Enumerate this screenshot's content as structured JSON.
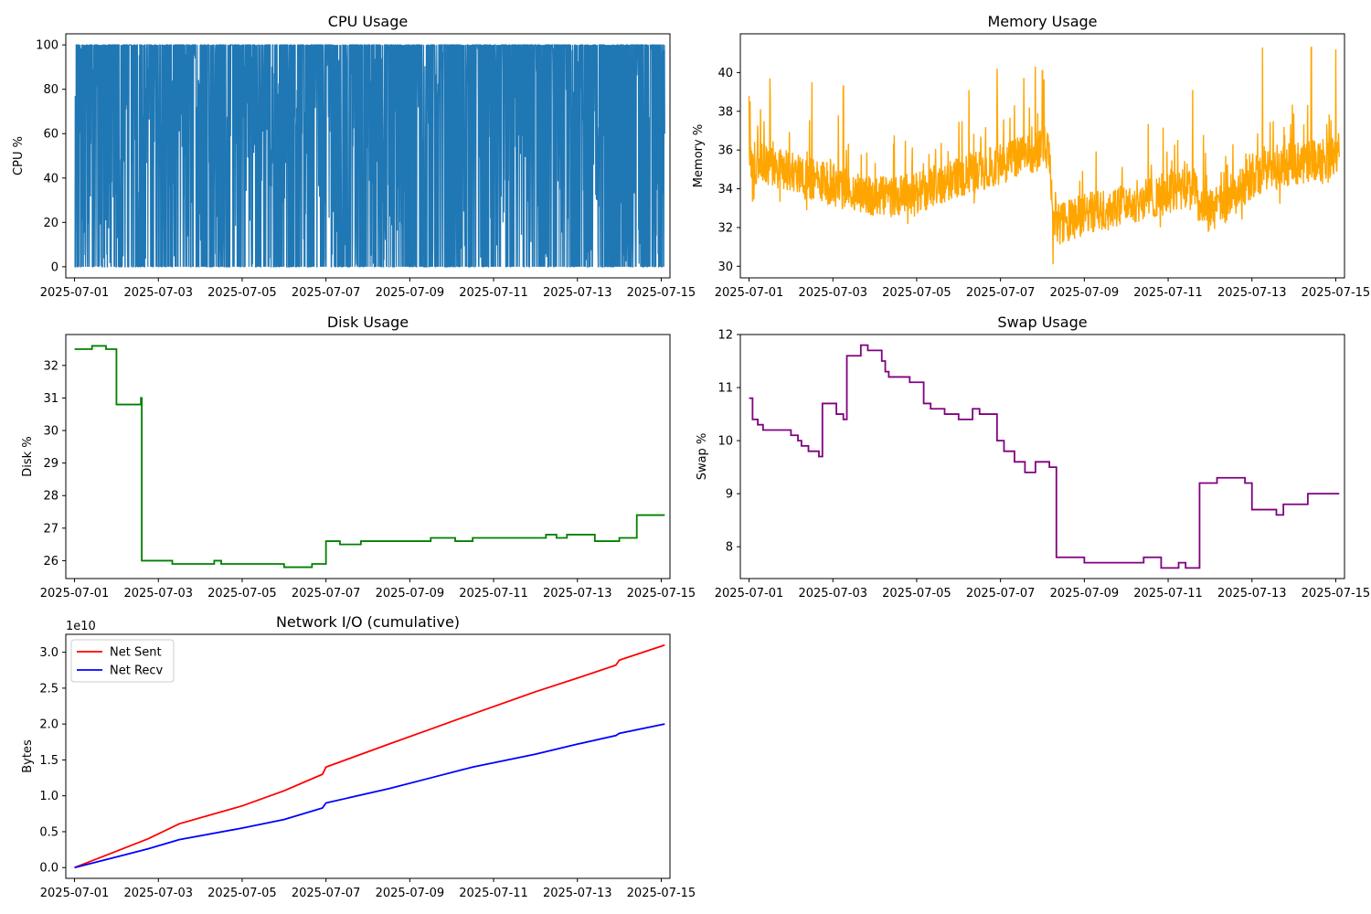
{
  "chart_data": [
    {
      "id": "cpu",
      "type": "line",
      "title": "CPU Usage",
      "xlabel": "",
      "ylabel": "CPU %",
      "xlim": [
        "2025-06-30T19:00",
        "2025-07-15T05:00"
      ],
      "ylim": [
        -5,
        105
      ],
      "xticks": [
        "2025-07-01",
        "2025-07-03",
        "2025-07-05",
        "2025-07-07",
        "2025-07-09",
        "2025-07-11",
        "2025-07-13",
        "2025-07-15"
      ],
      "yticks": [
        0,
        20,
        40,
        60,
        80,
        100
      ],
      "grid": false,
      "color": "#1f77b4",
      "series": [
        {
          "x_start": "2025-07-01T00:00",
          "x_end": "2025-07-15T02:00",
          "profile": "dense spikes between 0 and 100 (mostly 0, frequent peaks 40-100)",
          "y_min": 0,
          "y_max": 100,
          "samples": [
            [
              "2025-07-01T00:00",
              0
            ],
            [
              "2025-07-01T00:10",
              77
            ],
            [
              "2025-07-01T00:20",
              0
            ],
            [
              "2025-07-02T00:00",
              100
            ],
            [
              "2025-07-03T00:00",
              100
            ],
            [
              "2025-07-04T12:00",
              100
            ],
            [
              "2025-07-06T00:00",
              100
            ],
            [
              "2025-07-07T12:00",
              100
            ],
            [
              "2025-07-08T12:00",
              31
            ],
            [
              "2025-07-10T00:00",
              100
            ],
            [
              "2025-07-12T00:00",
              100
            ],
            [
              "2025-07-14T00:00",
              100
            ],
            [
              "2025-07-15T02:00",
              60
            ]
          ]
        }
      ]
    },
    {
      "id": "memory",
      "type": "line",
      "title": "Memory Usage",
      "xlabel": "",
      "ylabel": "Memory %",
      "xlim": [
        "2025-06-30T19:00",
        "2025-07-15T05:00"
      ],
      "ylim": [
        29.4,
        42.0
      ],
      "xticks": [
        "2025-07-01",
        "2025-07-03",
        "2025-07-05",
        "2025-07-07",
        "2025-07-09",
        "2025-07-11",
        "2025-07-13",
        "2025-07-15"
      ],
      "yticks": [
        30,
        32,
        34,
        36,
        38,
        40
      ],
      "grid": false,
      "color": "#ffa500",
      "series": [
        {
          "baseline": [
            [
              "2025-07-01T00:00",
              35.4
            ],
            [
              "2025-07-02T00:00",
              34.9
            ],
            [
              "2025-07-03T00:00",
              34.2
            ],
            [
              "2025-07-04T00:00",
              33.5
            ],
            [
              "2025-07-05T00:00",
              33.8
            ],
            [
              "2025-07-06T00:00",
              34.6
            ],
            [
              "2025-07-07T00:00",
              35.3
            ],
            [
              "2025-07-08T04:00",
              36.2
            ],
            [
              "2025-07-08T06:00",
              32.0
            ],
            [
              "2025-07-09T00:00",
              32.7
            ],
            [
              "2025-07-10T00:00",
              33.2
            ],
            [
              "2025-07-11T00:00",
              33.8
            ],
            [
              "2025-07-11T16:00",
              34.0
            ],
            [
              "2025-07-11T18:00",
              32.6
            ],
            [
              "2025-07-12T12:00",
              33.4
            ],
            [
              "2025-07-13T00:00",
              34.6
            ],
            [
              "2025-07-14T00:00",
              35.3
            ],
            [
              "2025-07-15T02:00",
              35.6
            ]
          ],
          "spikes": [
            [
              "2025-07-01T00:00",
              38.8
            ],
            [
              "2025-07-01T12:00",
              39.7
            ],
            [
              "2025-07-02T12:00",
              39.5
            ],
            [
              "2025-07-03T06:00",
              39.3
            ],
            [
              "2025-07-06T06:00",
              39.1
            ],
            [
              "2025-07-06T22:00",
              40.2
            ],
            [
              "2025-07-07T20:00",
              40.3
            ],
            [
              "2025-07-08T00:00",
              40.1
            ],
            [
              "2025-07-08T06:00",
              30.1
            ],
            [
              "2025-07-11T14:00",
              39.1
            ],
            [
              "2025-07-13T06:00",
              41.3
            ],
            [
              "2025-07-14T10:00",
              41.3
            ],
            [
              "2025-07-15T00:00",
              41.2
            ]
          ]
        }
      ]
    },
    {
      "id": "disk",
      "type": "line",
      "title": "Disk Usage",
      "xlabel": "",
      "ylabel": "Disk %",
      "xlim": [
        "2025-06-30T19:00",
        "2025-07-15T05:00"
      ],
      "ylim": [
        25.45,
        32.95
      ],
      "xticks": [
        "2025-07-01",
        "2025-07-03",
        "2025-07-05",
        "2025-07-07",
        "2025-07-09",
        "2025-07-11",
        "2025-07-13",
        "2025-07-15"
      ],
      "yticks": [
        26,
        27,
        28,
        29,
        30,
        31,
        32
      ],
      "grid": false,
      "color": "#008000",
      "series": [
        {
          "steps": [
            [
              "2025-07-01T00:00",
              32.5
            ],
            [
              "2025-07-01T10:00",
              32.6
            ],
            [
              "2025-07-01T18:00",
              32.5
            ],
            [
              "2025-07-02T00:00",
              30.8
            ],
            [
              "2025-07-02T14:00",
              31.0
            ],
            [
              "2025-07-02T14:30",
              26.0
            ],
            [
              "2025-07-03T08:00",
              25.9
            ],
            [
              "2025-07-04T08:00",
              26.0
            ],
            [
              "2025-07-04T12:00",
              25.9
            ],
            [
              "2025-07-06T00:00",
              25.8
            ],
            [
              "2025-07-06T16:00",
              25.9
            ],
            [
              "2025-07-07T00:00",
              26.6
            ],
            [
              "2025-07-07T08:00",
              26.5
            ],
            [
              "2025-07-07T20:00",
              26.6
            ],
            [
              "2025-07-09T12:00",
              26.7
            ],
            [
              "2025-07-10T02:00",
              26.6
            ],
            [
              "2025-07-10T12:00",
              26.7
            ],
            [
              "2025-07-12T06:00",
              26.8
            ],
            [
              "2025-07-12T12:00",
              26.7
            ],
            [
              "2025-07-12T18:00",
              26.8
            ],
            [
              "2025-07-13T10:00",
              26.6
            ],
            [
              "2025-07-14T00:00",
              26.7
            ],
            [
              "2025-07-14T10:00",
              27.4
            ],
            [
              "2025-07-15T02:00",
              27.4
            ]
          ]
        }
      ]
    },
    {
      "id": "swap",
      "type": "line",
      "title": "Swap Usage",
      "xlabel": "",
      "ylabel": "Swap %",
      "xlim": [
        "2025-06-30T19:00",
        "2025-07-15T05:00"
      ],
      "ylim": [
        7.4,
        12.0
      ],
      "xticks": [
        "2025-07-01",
        "2025-07-03",
        "2025-07-05",
        "2025-07-07",
        "2025-07-09",
        "2025-07-11",
        "2025-07-13",
        "2025-07-15"
      ],
      "yticks": [
        8,
        9,
        10,
        11,
        12
      ],
      "grid": false,
      "color": "#800080",
      "series": [
        {
          "steps": [
            [
              "2025-07-01T00:00",
              10.8
            ],
            [
              "2025-07-01T02:00",
              10.4
            ],
            [
              "2025-07-01T05:00",
              10.3
            ],
            [
              "2025-07-01T08:00",
              10.2
            ],
            [
              "2025-07-02T00:00",
              10.1
            ],
            [
              "2025-07-02T04:00",
              10.0
            ],
            [
              "2025-07-02T06:00",
              9.9
            ],
            [
              "2025-07-02T10:00",
              9.8
            ],
            [
              "2025-07-02T16:00",
              9.7
            ],
            [
              "2025-07-02T18:00",
              10.7
            ],
            [
              "2025-07-03T02:00",
              10.5
            ],
            [
              "2025-07-03T06:00",
              10.4
            ],
            [
              "2025-07-03T08:00",
              11.6
            ],
            [
              "2025-07-03T16:00",
              11.8
            ],
            [
              "2025-07-03T20:00",
              11.7
            ],
            [
              "2025-07-04T04:00",
              11.5
            ],
            [
              "2025-07-04T06:00",
              11.3
            ],
            [
              "2025-07-04T08:00",
              11.2
            ],
            [
              "2025-07-04T20:00",
              11.1
            ],
            [
              "2025-07-05T04:00",
              10.7
            ],
            [
              "2025-07-05T08:00",
              10.6
            ],
            [
              "2025-07-05T16:00",
              10.5
            ],
            [
              "2025-07-06T00:00",
              10.4
            ],
            [
              "2025-07-06T08:00",
              10.6
            ],
            [
              "2025-07-06T12:00",
              10.5
            ],
            [
              "2025-07-06T22:00",
              10.0
            ],
            [
              "2025-07-07T02:00",
              9.8
            ],
            [
              "2025-07-07T08:00",
              9.6
            ],
            [
              "2025-07-07T14:00",
              9.4
            ],
            [
              "2025-07-07T20:00",
              9.6
            ],
            [
              "2025-07-08T04:00",
              9.5
            ],
            [
              "2025-07-08T08:00",
              7.8
            ],
            [
              "2025-07-09T00:00",
              7.7
            ],
            [
              "2025-07-10T10:00",
              7.8
            ],
            [
              "2025-07-10T20:00",
              7.6
            ],
            [
              "2025-07-11T06:00",
              7.7
            ],
            [
              "2025-07-11T10:00",
              7.6
            ],
            [
              "2025-07-11T18:00",
              9.2
            ],
            [
              "2025-07-12T04:00",
              9.3
            ],
            [
              "2025-07-12T20:00",
              9.2
            ],
            [
              "2025-07-13T00:00",
              8.7
            ],
            [
              "2025-07-13T14:00",
              8.6
            ],
            [
              "2025-07-13T18:00",
              8.8
            ],
            [
              "2025-07-14T08:00",
              9.0
            ],
            [
              "2025-07-15T02:00",
              9.0
            ]
          ]
        }
      ]
    },
    {
      "id": "network",
      "type": "line",
      "title": "Network I/O (cumulative)",
      "xlabel": "",
      "ylabel": "Bytes",
      "offset_text": "1e10",
      "xlim": [
        "2025-06-30T19:00",
        "2025-07-15T05:00"
      ],
      "ylim": [
        -0.15,
        3.25
      ],
      "xticks": [
        "2025-07-01",
        "2025-07-03",
        "2025-07-05",
        "2025-07-07",
        "2025-07-09",
        "2025-07-11",
        "2025-07-13",
        "2025-07-15"
      ],
      "yticks": [
        "0.0",
        "0.5",
        "1.0",
        "1.5",
        "2.0",
        "2.5",
        "3.0"
      ],
      "grid": false,
      "legend": "upper-left",
      "series": [
        {
          "name": "Net Sent",
          "color": "#ff0000",
          "x": [
            "2025-07-01T00:00",
            "2025-07-02T18:00",
            "2025-07-03T12:00",
            "2025-07-05T00:00",
            "2025-07-06T00:00",
            "2025-07-06T22:00",
            "2025-07-07T00:00",
            "2025-07-08T12:00",
            "2025-07-09T12:00",
            "2025-07-10T12:00",
            "2025-07-12T00:00",
            "2025-07-13T00:00",
            "2025-07-13T22:00",
            "2025-07-14T00:00",
            "2025-07-15T02:00"
          ],
          "values": [
            0.0,
            0.4,
            0.61,
            0.86,
            1.07,
            1.3,
            1.4,
            1.72,
            1.93,
            2.14,
            2.45,
            2.64,
            2.82,
            2.89,
            3.1
          ]
        },
        {
          "name": "Net Recv",
          "color": "#0000ff",
          "x": [
            "2025-07-01T00:00",
            "2025-07-02T18:00",
            "2025-07-03T12:00",
            "2025-07-05T00:00",
            "2025-07-06T00:00",
            "2025-07-06T22:00",
            "2025-07-07T00:00",
            "2025-07-08T12:00",
            "2025-07-09T12:00",
            "2025-07-10T12:00",
            "2025-07-12T00:00",
            "2025-07-13T00:00",
            "2025-07-13T22:00",
            "2025-07-14T00:00",
            "2025-07-15T02:00"
          ],
          "values": [
            0.0,
            0.26,
            0.39,
            0.55,
            0.67,
            0.83,
            0.9,
            1.1,
            1.25,
            1.4,
            1.58,
            1.72,
            1.84,
            1.87,
            2.0
          ]
        }
      ]
    }
  ]
}
